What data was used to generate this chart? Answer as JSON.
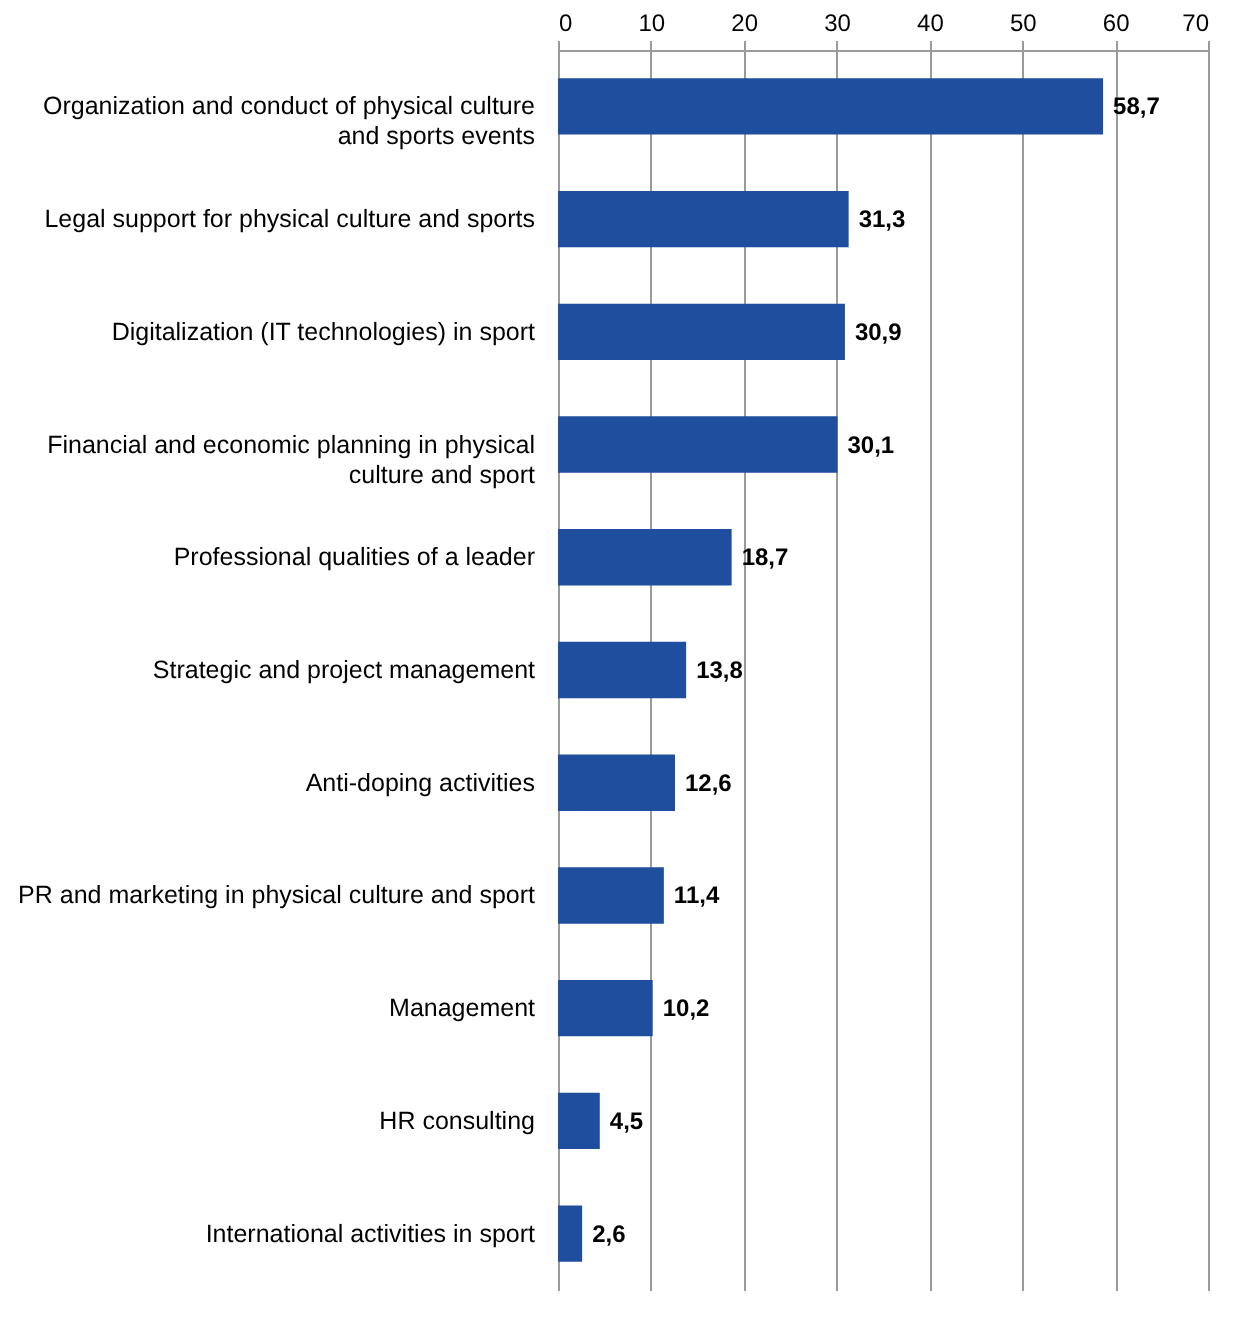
{
  "chart_data": {
    "type": "bar",
    "orientation": "horizontal",
    "categories": [
      "Organization and conduct of physical culture and sports events",
      "Legal support for physical culture and sports",
      "Digitalization (IT technologies) in sport",
      "Financial and economic planning in physical culture and sport",
      "Professional qualities of a leader",
      "Strategic and project management",
      "Anti-doping activities",
      "PR and marketing in physical culture and sport",
      "Management",
      "HR consulting",
      "International activities in sport"
    ],
    "values": [
      58.7,
      31.3,
      30.9,
      30.1,
      18.7,
      13.8,
      12.6,
      11.4,
      10.2,
      4.5,
      2.6
    ],
    "value_labels": [
      "58,7",
      "31,3",
      "30,9",
      "30,1",
      "18,7",
      "13,8",
      "12,6",
      "11,4",
      "10,2",
      "4,5",
      "2,6"
    ],
    "color": "#1f4e9e",
    "xlim": [
      0,
      70
    ],
    "xticks": [
      0,
      10,
      20,
      30,
      40,
      50,
      60,
      70
    ],
    "grid": "x"
  }
}
